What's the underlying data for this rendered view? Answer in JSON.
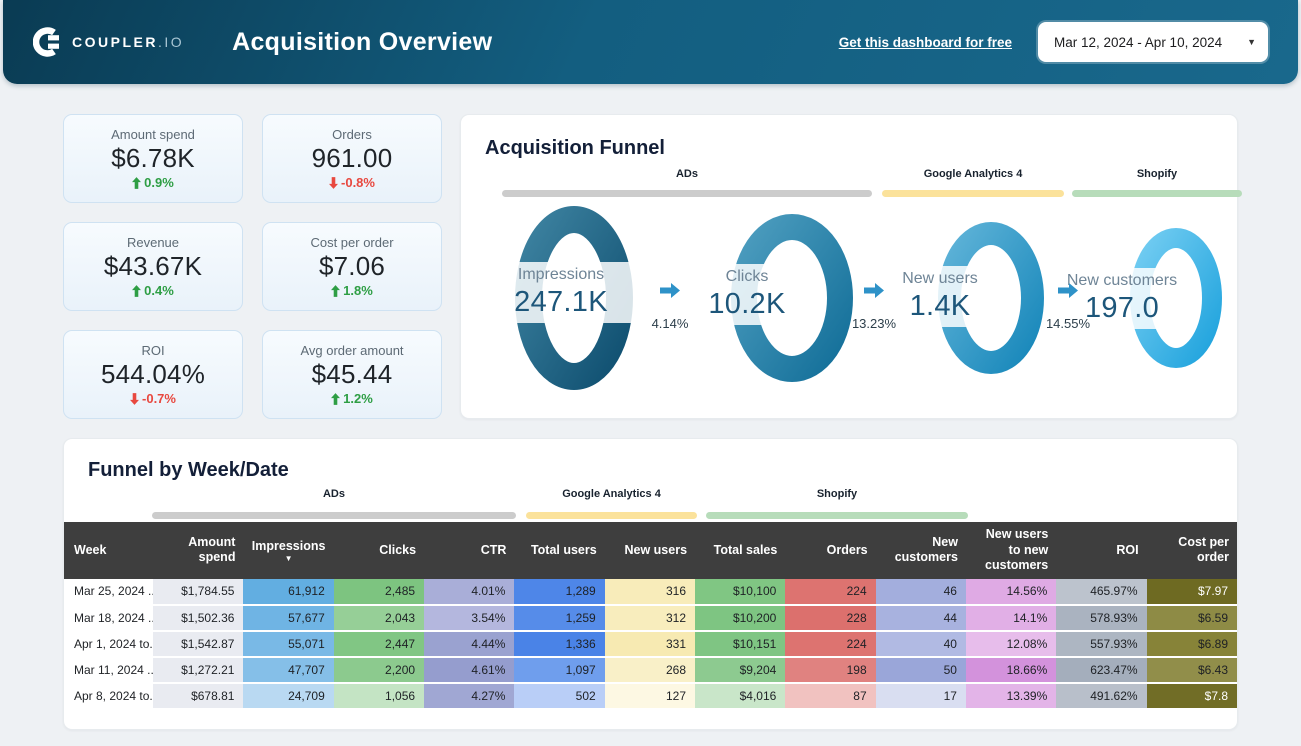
{
  "header": {
    "logo_text": "COUPLER",
    "logo_suffix": ".IO",
    "title": "Acquisition Overview",
    "link_label": "Get this dashboard for free",
    "date_range": "Mar 12, 2024 - Apr 10, 2024"
  },
  "kpis": [
    {
      "label": "Amount spend",
      "value": "$6.78K",
      "delta": "0.9%",
      "direction": "up"
    },
    {
      "label": "Orders",
      "value": "961.00",
      "delta": "-0.8%",
      "direction": "down"
    },
    {
      "label": "Revenue",
      "value": "$43.67K",
      "delta": "0.4%",
      "direction": "up"
    },
    {
      "label": "Cost per order",
      "value": "$7.06",
      "delta": "1.8%",
      "direction": "up"
    },
    {
      "label": "ROI",
      "value": "544.04%",
      "delta": "-0.7%",
      "direction": "down"
    },
    {
      "label": "Avg order amount",
      "value": "$45.44",
      "delta": "1.2%",
      "direction": "up"
    }
  ],
  "funnel": {
    "title": "Acquisition Funnel",
    "groups": [
      {
        "label": "ADs",
        "color": "#cccccc"
      },
      {
        "label": "Google Analytics 4",
        "color": "#fbe29b"
      },
      {
        "label": "Shopify",
        "color": "#b7dcba"
      }
    ],
    "stages": [
      {
        "label": "Impressions",
        "value": "247.1K",
        "ring_light": "#3d82a0",
        "ring_dark": "#0f4f70"
      },
      {
        "label": "Clicks",
        "value": "10.2K",
        "ring_light": "#4d9dbf",
        "ring_dark": "#136f99"
      },
      {
        "label": "New users",
        "value": "1.4K",
        "ring_light": "#5fb3d8",
        "ring_dark": "#1787ba"
      },
      {
        "label": "New customers",
        "value": "197.0",
        "ring_light": "#74cdf2",
        "ring_dark": "#1fa3dd"
      }
    ],
    "transitions": [
      "4.14%",
      "13.23%",
      "14.55%"
    ],
    "arrow_color": "#2e92c8"
  },
  "table": {
    "title": "Funnel by Week/Date",
    "groups": [
      {
        "label": "ADs",
        "color": "#cccccc"
      },
      {
        "label": "Google Analytics 4",
        "color": "#fbe29b"
      },
      {
        "label": "Shopify",
        "color": "#b7dcba"
      }
    ],
    "columns": [
      {
        "label": "Week"
      },
      {
        "label": "Amount spend"
      },
      {
        "label": "Impressions",
        "sorted": true
      },
      {
        "label": "Clicks"
      },
      {
        "label": "CTR"
      },
      {
        "label": "Total users"
      },
      {
        "label": "New users"
      },
      {
        "label": "Total sales"
      },
      {
        "label": "Orders"
      },
      {
        "label": "New customers"
      },
      {
        "label": "New users to new customers"
      },
      {
        "label": "ROI"
      },
      {
        "label": "Cost per order"
      }
    ],
    "rows": [
      [
        "Mar 25, 2024 ...",
        "$1,784.55",
        "61,912",
        "2,485",
        "4.01%",
        "1,289",
        "316",
        "$10,100",
        "224",
        "46",
        "14.56%",
        "465.97%",
        "$7.97"
      ],
      [
        "Mar 18, 2024 ...",
        "$1,502.36",
        "57,677",
        "2,043",
        "3.54%",
        "1,259",
        "312",
        "$10,200",
        "228",
        "44",
        "14.1%",
        "578.93%",
        "$6.59"
      ],
      [
        "Apr 1, 2024 to...",
        "$1,542.87",
        "55,071",
        "2,447",
        "4.44%",
        "1,336",
        "331",
        "$10,151",
        "224",
        "40",
        "12.08%",
        "557.93%",
        "$6.89"
      ],
      [
        "Mar 11, 2024 ...",
        "$1,272.21",
        "47,707",
        "2,200",
        "4.61%",
        "1,097",
        "268",
        "$9,204",
        "198",
        "50",
        "18.66%",
        "623.47%",
        "$6.43"
      ],
      [
        "Apr 8, 2024 to...",
        "$678.81",
        "24,709",
        "1,056",
        "4.27%",
        "502",
        "127",
        "$4,016",
        "87",
        "17",
        "13.39%",
        "491.62%",
        "$7.8"
      ]
    ],
    "cell_colors": [
      [
        "#ffffff",
        "#ffffff",
        "#ffffff",
        "#ffffff",
        "#ffffff"
      ],
      [
        "#e9ebf1",
        "#e9ebf1",
        "#e9ebf1",
        "#e9ebf1",
        "#e9ebf1"
      ],
      [
        "#62aee1",
        "#6fb4e4",
        "#79b9e6",
        "#85bfe8",
        "#b9d9f2"
      ],
      [
        "#7dc480",
        "#96cf97",
        "#81c684",
        "#8cca8e",
        "#c4e4c4"
      ],
      [
        "#a9aed8",
        "#b4b7de",
        "#9aa2d0",
        "#959dce",
        "#a0a7d3"
      ],
      [
        "#4e86e8",
        "#568ce9",
        "#4a83e7",
        "#6f9eed",
        "#b9cef7"
      ],
      [
        "#f8ecba",
        "#f8edbd",
        "#f7eab2",
        "#f9f0c8",
        "#fdf8e3"
      ],
      [
        "#80c683",
        "#7ec582",
        "#7fc583",
        "#8dca90",
        "#c9e6c9"
      ],
      [
        "#dd7370",
        "#dc706d",
        "#dd7370",
        "#e08280",
        "#f1c2c0"
      ],
      [
        "#a3aedd",
        "#a8b2df",
        "#b1bae3",
        "#9aa6d9",
        "#d9def1"
      ],
      [
        "#dfaae4",
        "#e1afe6",
        "#e7bdeb",
        "#d392dc",
        "#e3b4e8"
      ],
      [
        "#bcc3cd",
        "#aab3c0",
        "#adb6c2",
        "#a4aebc",
        "#b8bfca"
      ],
      [
        "#6e6a22",
        "#8e8b45",
        "#878338",
        "#918e4a",
        "#716d26"
      ]
    ]
  }
}
